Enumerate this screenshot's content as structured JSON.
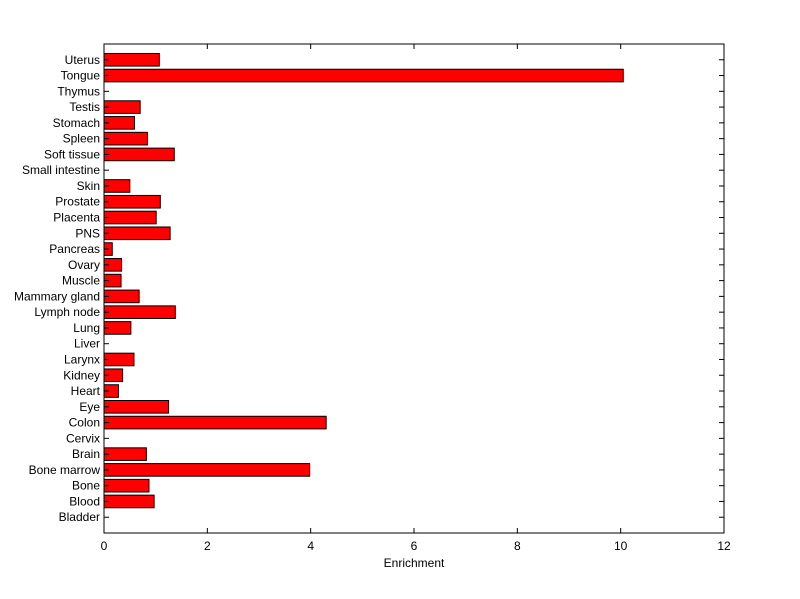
{
  "chart_data": {
    "type": "bar",
    "orientation": "horizontal",
    "title": "",
    "xlabel": "Enrichment",
    "ylabel": "",
    "xlim": [
      0,
      12
    ],
    "x_ticks": [
      0,
      2,
      4,
      6,
      8,
      10,
      12
    ],
    "categories": [
      "Bladder",
      "Blood",
      "Bone",
      "Bone marrow",
      "Brain",
      "Cervix",
      "Colon",
      "Eye",
      "Heart",
      "Kidney",
      "Larynx",
      "Liver",
      "Lung",
      "Lymph node",
      "Mammary gland",
      "Muscle",
      "Ovary",
      "Pancreas",
      "PNS",
      "Placenta",
      "Prostate",
      "Skin",
      "Small intestine",
      "Soft tissue",
      "Spleen",
      "Stomach",
      "Testis",
      "Thymus",
      "Tongue",
      "Uterus"
    ],
    "values": [
      0,
      0.97,
      0.87,
      3.98,
      0.82,
      0,
      4.3,
      1.25,
      0.28,
      0.36,
      0.58,
      0,
      0.52,
      1.38,
      0.68,
      0.33,
      0.34,
      0.16,
      1.28,
      1.01,
      1.09,
      0.5,
      0,
      1.36,
      0.84,
      0.59,
      0.7,
      0,
      10.05,
      1.07
    ],
    "grid": false,
    "legend": "none",
    "colors": {
      "bar_fill": "#ff0000",
      "bar_edge": "#000000",
      "axis": "#000000",
      "background": "#ffffff"
    }
  }
}
